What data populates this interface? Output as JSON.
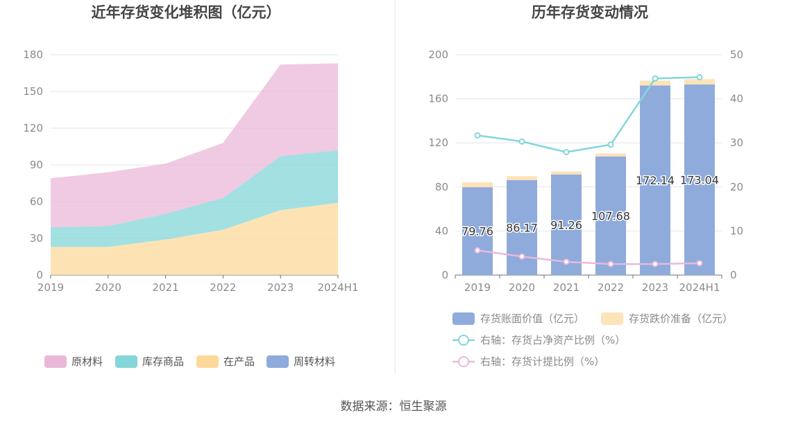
{
  "chart_data": [
    {
      "type": "area",
      "title": "近年存货变化堆积图（亿元）",
      "stacked": true,
      "categories": [
        "2019",
        "2020",
        "2021",
        "2022",
        "2023",
        "2024H1"
      ],
      "series": [
        {
          "name": "原材料",
          "color": "#e9b8d8",
          "values": [
            40,
            44,
            41,
            45,
            75,
            71
          ]
        },
        {
          "name": "库存商品",
          "color": "#84d6d8",
          "values": [
            16,
            17,
            21,
            26,
            44,
            43
          ]
        },
        {
          "name": "在产品",
          "color": "#fcd99b",
          "values": [
            23,
            23,
            29,
            37,
            53,
            59
          ]
        },
        {
          "name": "周转材料",
          "color": "#8eabdb",
          "values": [
            0,
            0,
            0,
            0,
            0,
            0
          ]
        }
      ],
      "yticks": [
        "0",
        "30",
        "60",
        "90",
        "120",
        "150",
        "180"
      ],
      "ylim": [
        0,
        180
      ],
      "legend_position": "bottom",
      "grid": true
    },
    {
      "type": "bar",
      "title": "历年存货变动情况",
      "stacked": true,
      "categories": [
        "2019",
        "2020",
        "2021",
        "2022",
        "2023",
        "2024H1"
      ],
      "series": [
        {
          "name": "存货账面价值（亿元）",
          "color": "#8eabdb",
          "values": [
            79.76,
            86.17,
            91.26,
            107.68,
            172.14,
            173.04
          ],
          "labels": [
            "79.76",
            "86.17",
            "91.26",
            "107.68",
            "172.14",
            "173.04"
          ]
        },
        {
          "name": "存货跌价准备（亿元）",
          "color": "#fde3b9",
          "values": [
            4.4,
            3.6,
            2.8,
            2.7,
            4.4,
            4.8
          ]
        }
      ],
      "line_series": [
        {
          "name": "右轴：存货占净资产比例（%）",
          "color": "#84d6d8",
          "axis": "right",
          "values": [
            31.7,
            30.3,
            27.9,
            29.6,
            44.6,
            44.9
          ]
        },
        {
          "name": "右轴：存货计提比例（%）",
          "color": "#e8b9dc",
          "axis": "right",
          "values": [
            5.6,
            4.2,
            3.0,
            2.5,
            2.5,
            2.7
          ]
        }
      ],
      "yticks_left": [
        "0",
        "40",
        "80",
        "120",
        "160",
        "200"
      ],
      "yticks_right": [
        "0",
        "10",
        "20",
        "30",
        "40",
        "50"
      ],
      "ylim_left": [
        0,
        200
      ],
      "ylim_right": [
        0,
        50
      ],
      "legend_position": "bottom",
      "grid": true
    }
  ],
  "footer": {
    "source": "数据来源：恒生聚源"
  }
}
